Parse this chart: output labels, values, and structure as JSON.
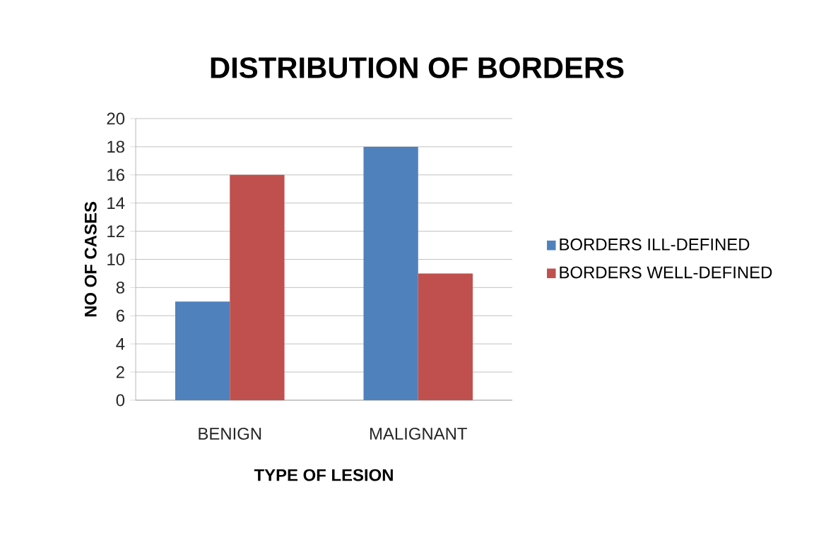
{
  "chart_data": {
    "type": "bar",
    "title": "DISTRIBUTION OF BORDERS",
    "xlabel": "TYPE OF LESION",
    "ylabel": "NO OF CASES",
    "categories": [
      "BENIGN",
      "MALIGNANT"
    ],
    "series": [
      {
        "name": "BORDERS ILL-DEFINED",
        "color": "#4f81bd",
        "values": [
          7,
          18
        ]
      },
      {
        "name": "BORDERS WELL-DEFINED",
        "color": "#c0504d",
        "values": [
          16,
          9
        ]
      }
    ],
    "ylim": [
      0,
      20
    ],
    "yticks": [
      0,
      2,
      4,
      6,
      8,
      10,
      12,
      14,
      16,
      18,
      20
    ],
    "grid": "y",
    "legend": "right"
  }
}
